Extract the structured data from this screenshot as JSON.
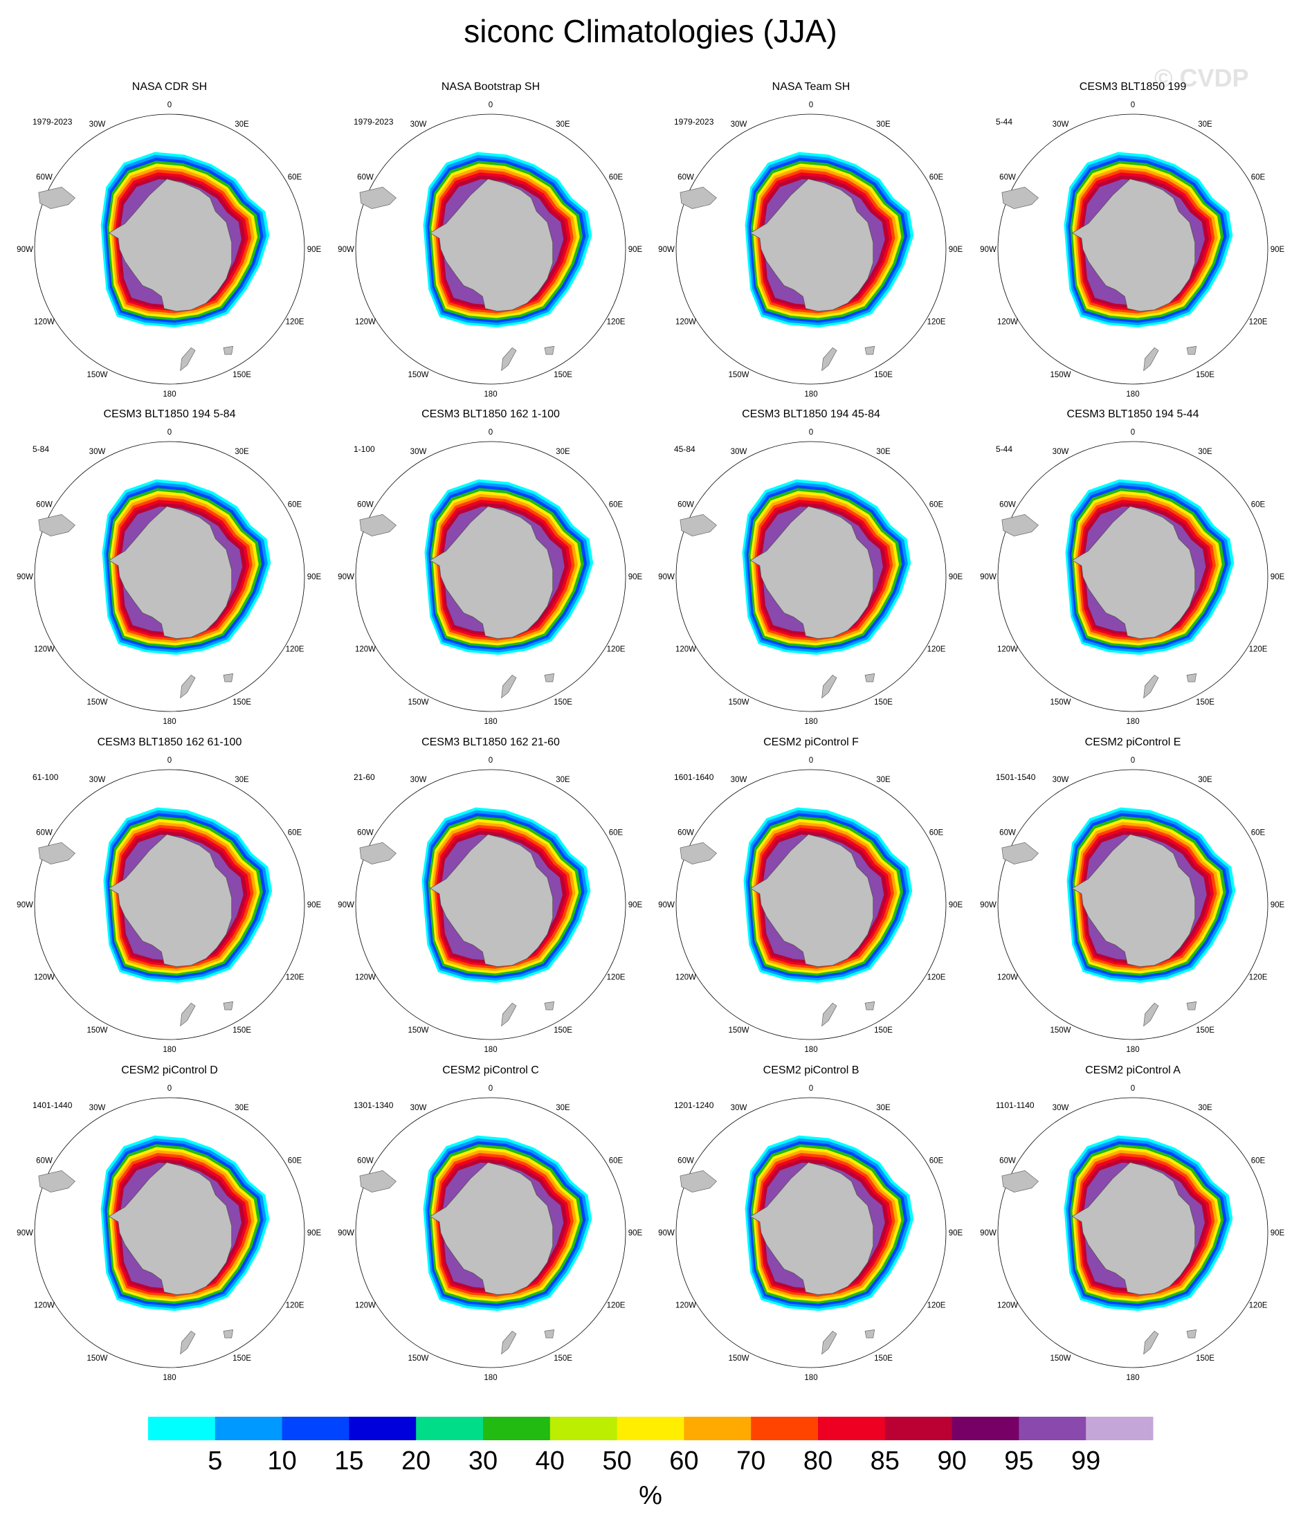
{
  "title": "siconc Climatologies (JJA)",
  "watermark": "© CVDP",
  "map_labels": {
    "lon_labels": [
      "0",
      "30E",
      "60E",
      "90E",
      "120E",
      "150E",
      "180",
      "150W",
      "120W",
      "90W",
      "60W",
      "30W"
    ]
  },
  "panels": [
    {
      "title": "NASA CDR SH",
      "period": "1979-2023"
    },
    {
      "title": "NASA Bootstrap SH",
      "period": "1979-2023"
    },
    {
      "title": "NASA Team SH",
      "period": "1979-2023"
    },
    {
      "title": "CESM3 BLT1850 199",
      "period": "5-44"
    },
    {
      "title": "CESM3 BLT1850 194 5-84",
      "period": "5-84"
    },
    {
      "title": "CESM3 BLT1850 162 1-100",
      "period": "1-100"
    },
    {
      "title": "CESM3 BLT1850 194 45-84",
      "period": "45-84"
    },
    {
      "title": "CESM3 BLT1850 194 5-44",
      "period": "5-44"
    },
    {
      "title": "CESM3 BLT1850 162 61-100",
      "period": "61-100"
    },
    {
      "title": "CESM3 BLT1850 162 21-60",
      "period": "21-60"
    },
    {
      "title": "CESM2 piControl F",
      "period": "1601-1640"
    },
    {
      "title": "CESM2 piControl E",
      "period": "1501-1540"
    },
    {
      "title": "CESM2 piControl D",
      "period": "1401-1440"
    },
    {
      "title": "CESM2 piControl C",
      "period": "1301-1340"
    },
    {
      "title": "CESM2 piControl B",
      "period": "1201-1240"
    },
    {
      "title": "CESM2 piControl A",
      "period": "1101-1140"
    }
  ],
  "colorbar": {
    "unit": "%",
    "tick_labels": [
      "5",
      "10",
      "15",
      "20",
      "30",
      "40",
      "50",
      "60",
      "70",
      "80",
      "85",
      "90",
      "95",
      "99"
    ],
    "colors": [
      "#00ffff",
      "#0099ff",
      "#0044ff",
      "#0000dd",
      "#00dd88",
      "#22bb11",
      "#bbee00",
      "#ffee00",
      "#ffaa00",
      "#ff4400",
      "#ee0022",
      "#bb0033",
      "#770066",
      "#8a49ad",
      "#c5a6d8"
    ]
  },
  "colors": {
    "land": "#c0c0c0",
    "ocean": "#ffffff"
  }
}
